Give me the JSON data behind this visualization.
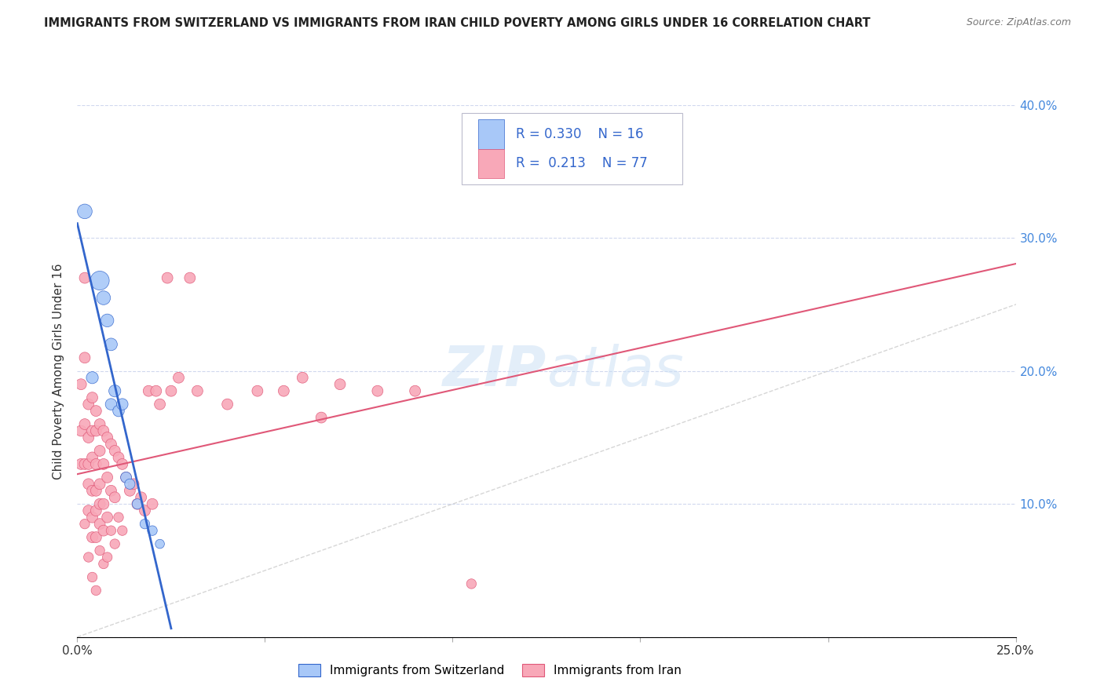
{
  "title": "IMMIGRANTS FROM SWITZERLAND VS IMMIGRANTS FROM IRAN CHILD POVERTY AMONG GIRLS UNDER 16 CORRELATION CHART",
  "source": "Source: ZipAtlas.com",
  "ylabel": "Child Poverty Among Girls Under 16",
  "xlim": [
    0.0,
    0.25
  ],
  "ylim": [
    0.0,
    0.4
  ],
  "xticks": [
    0.0,
    0.05,
    0.1,
    0.15,
    0.2,
    0.25
  ],
  "yticks": [
    0.0,
    0.1,
    0.2,
    0.3,
    0.4
  ],
  "xtick_labels": [
    "0.0%",
    "",
    "",
    "",
    "",
    "25.0%"
  ],
  "ytick_labels_right": [
    "",
    "10.0%",
    "20.0%",
    "30.0%",
    "40.0%"
  ],
  "watermark_zip": "ZIP",
  "watermark_atlas": "atlas",
  "legend1_R": "0.330",
  "legend1_N": "16",
  "legend2_R": "0.213",
  "legend2_N": "77",
  "color_swiss": "#a8c8f8",
  "color_iran": "#f8a8b8",
  "color_swiss_line": "#3366cc",
  "color_iran_line": "#e05878",
  "color_diagonal": "#cccccc",
  "swiss_x": [
    0.002,
    0.004,
    0.006,
    0.007,
    0.008,
    0.009,
    0.009,
    0.01,
    0.011,
    0.012,
    0.013,
    0.014,
    0.016,
    0.018,
    0.02,
    0.022
  ],
  "swiss_y": [
    0.32,
    0.195,
    0.268,
    0.255,
    0.238,
    0.22,
    0.175,
    0.185,
    0.17,
    0.175,
    0.12,
    0.115,
    0.1,
    0.085,
    0.08,
    0.07
  ],
  "swiss_size": [
    180,
    120,
    300,
    160,
    140,
    130,
    110,
    120,
    110,
    110,
    100,
    90,
    90,
    80,
    80,
    70
  ],
  "iran_x": [
    0.001,
    0.001,
    0.001,
    0.002,
    0.002,
    0.002,
    0.002,
    0.002,
    0.003,
    0.003,
    0.003,
    0.003,
    0.003,
    0.003,
    0.004,
    0.004,
    0.004,
    0.004,
    0.004,
    0.004,
    0.004,
    0.005,
    0.005,
    0.005,
    0.005,
    0.005,
    0.005,
    0.005,
    0.006,
    0.006,
    0.006,
    0.006,
    0.006,
    0.006,
    0.007,
    0.007,
    0.007,
    0.007,
    0.007,
    0.008,
    0.008,
    0.008,
    0.008,
    0.009,
    0.009,
    0.009,
    0.01,
    0.01,
    0.01,
    0.011,
    0.011,
    0.012,
    0.012,
    0.013,
    0.014,
    0.015,
    0.016,
    0.017,
    0.018,
    0.019,
    0.02,
    0.021,
    0.022,
    0.024,
    0.025,
    0.027,
    0.03,
    0.032,
    0.04,
    0.048,
    0.055,
    0.06,
    0.065,
    0.07,
    0.08,
    0.09,
    0.105
  ],
  "iran_y": [
    0.19,
    0.155,
    0.13,
    0.27,
    0.21,
    0.16,
    0.13,
    0.085,
    0.175,
    0.15,
    0.13,
    0.115,
    0.095,
    0.06,
    0.18,
    0.155,
    0.135,
    0.11,
    0.09,
    0.075,
    0.045,
    0.17,
    0.155,
    0.13,
    0.11,
    0.095,
    0.075,
    0.035,
    0.16,
    0.14,
    0.115,
    0.1,
    0.085,
    0.065,
    0.155,
    0.13,
    0.1,
    0.08,
    0.055,
    0.15,
    0.12,
    0.09,
    0.06,
    0.145,
    0.11,
    0.08,
    0.14,
    0.105,
    0.07,
    0.135,
    0.09,
    0.13,
    0.08,
    0.12,
    0.11,
    0.115,
    0.1,
    0.105,
    0.095,
    0.185,
    0.1,
    0.185,
    0.175,
    0.27,
    0.185,
    0.195,
    0.27,
    0.185,
    0.175,
    0.185,
    0.185,
    0.195,
    0.165,
    0.19,
    0.185,
    0.185,
    0.04
  ],
  "iran_size": [
    100,
    100,
    100,
    100,
    100,
    100,
    100,
    80,
    100,
    100,
    100,
    100,
    100,
    80,
    100,
    100,
    100,
    100,
    100,
    100,
    80,
    100,
    100,
    100,
    100,
    100,
    100,
    80,
    100,
    100,
    100,
    100,
    100,
    80,
    100,
    100,
    100,
    100,
    80,
    100,
    100,
    100,
    80,
    100,
    100,
    80,
    100,
    100,
    80,
    100,
    80,
    100,
    80,
    100,
    100,
    100,
    100,
    100,
    100,
    100,
    100,
    100,
    100,
    100,
    100,
    100,
    100,
    100,
    100,
    100,
    100,
    100,
    100,
    100,
    100,
    100,
    80
  ]
}
